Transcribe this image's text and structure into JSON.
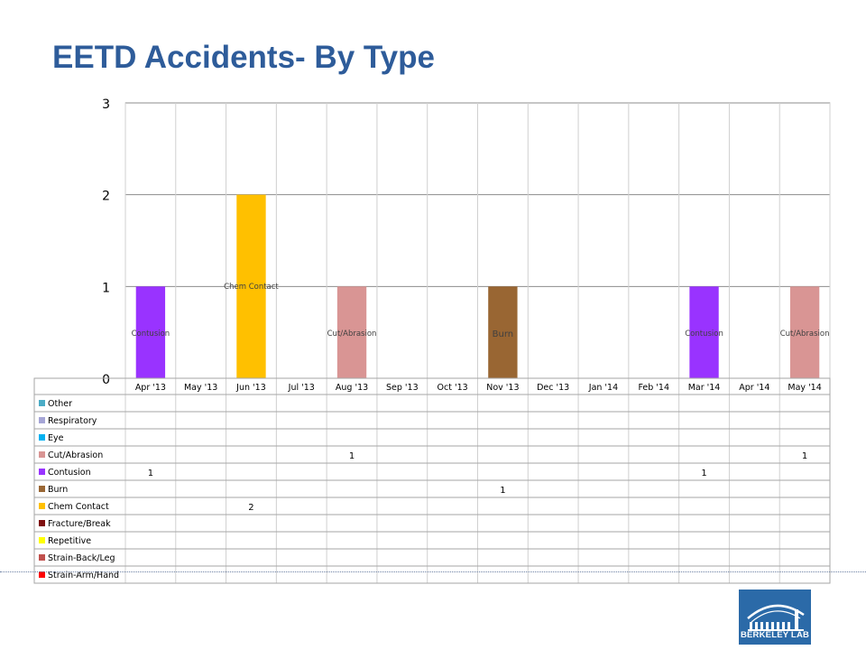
{
  "slide": {
    "title": "EETD Accidents- By Type",
    "logo_text": "BERKELEY LAB"
  },
  "chart_data": {
    "type": "bar",
    "stacked": true,
    "ylim": [
      0,
      3
    ],
    "yticks": [
      0,
      1,
      2,
      3
    ],
    "grid": true,
    "legend": "data-table",
    "categories": [
      "Apr '13",
      "May '13",
      "Jun '13",
      "Jul '13",
      "Aug '13",
      "Sep '13",
      "Oct '13",
      "Nov '13",
      "Dec '13",
      "Jan '14",
      "Feb '14",
      "Mar '14",
      "Apr '14",
      "May '14"
    ],
    "series": [
      {
        "name": "Other",
        "color": "#4bacc6",
        "values": [
          null,
          null,
          null,
          null,
          null,
          null,
          null,
          null,
          null,
          null,
          null,
          null,
          null,
          null
        ]
      },
      {
        "name": "Respiratory",
        "color": "#a5a5d6",
        "values": [
          null,
          null,
          null,
          null,
          null,
          null,
          null,
          null,
          null,
          null,
          null,
          null,
          null,
          null
        ]
      },
      {
        "name": "Eye",
        "color": "#00b0f0",
        "values": [
          null,
          null,
          null,
          null,
          null,
          null,
          null,
          null,
          null,
          null,
          null,
          null,
          null,
          null
        ]
      },
      {
        "name": "Cut/Abrasion",
        "color": "#d99594",
        "values": [
          null,
          null,
          null,
          null,
          1,
          null,
          null,
          null,
          null,
          null,
          null,
          null,
          null,
          1
        ]
      },
      {
        "name": "Contusion",
        "color": "#9933ff",
        "values": [
          1,
          null,
          null,
          null,
          null,
          null,
          null,
          null,
          null,
          null,
          null,
          1,
          null,
          null
        ]
      },
      {
        "name": "Burn",
        "color": "#996633",
        "values": [
          null,
          null,
          null,
          null,
          null,
          null,
          null,
          1,
          null,
          null,
          null,
          null,
          null,
          null
        ]
      },
      {
        "name": "Chem Contact",
        "color": "#ffc000",
        "values": [
          null,
          null,
          2,
          null,
          null,
          null,
          null,
          null,
          null,
          null,
          null,
          null,
          null,
          null
        ]
      },
      {
        "name": "Fracture/Break",
        "color": "#7f1010",
        "values": [
          null,
          null,
          null,
          null,
          null,
          null,
          null,
          null,
          null,
          null,
          null,
          null,
          null,
          null
        ]
      },
      {
        "name": "Repetitive",
        "color": "#ffff00",
        "values": [
          null,
          null,
          null,
          null,
          null,
          null,
          null,
          null,
          null,
          null,
          null,
          null,
          null,
          null
        ]
      },
      {
        "name": "Strain-Back/Leg",
        "color": "#c0504d",
        "values": [
          null,
          null,
          null,
          null,
          null,
          null,
          null,
          null,
          null,
          null,
          null,
          null,
          null,
          null
        ]
      },
      {
        "name": "Strain-Arm/Hand",
        "color": "#ff0000",
        "values": [
          null,
          null,
          null,
          null,
          null,
          null,
          null,
          null,
          null,
          null,
          null,
          null,
          null,
          null
        ]
      }
    ],
    "bar_labels": [
      {
        "category": "Apr '13",
        "text": "Contusion"
      },
      {
        "category": "Jun '13",
        "text": "Chem Contact"
      },
      {
        "category": "Aug '13",
        "text": "Cut/Abrasion"
      },
      {
        "category": "Nov '13",
        "text": "Burn"
      },
      {
        "category": "Mar '14",
        "text": "Contusion"
      },
      {
        "category": "May '14",
        "text": "Cut/Abrasion"
      }
    ]
  }
}
